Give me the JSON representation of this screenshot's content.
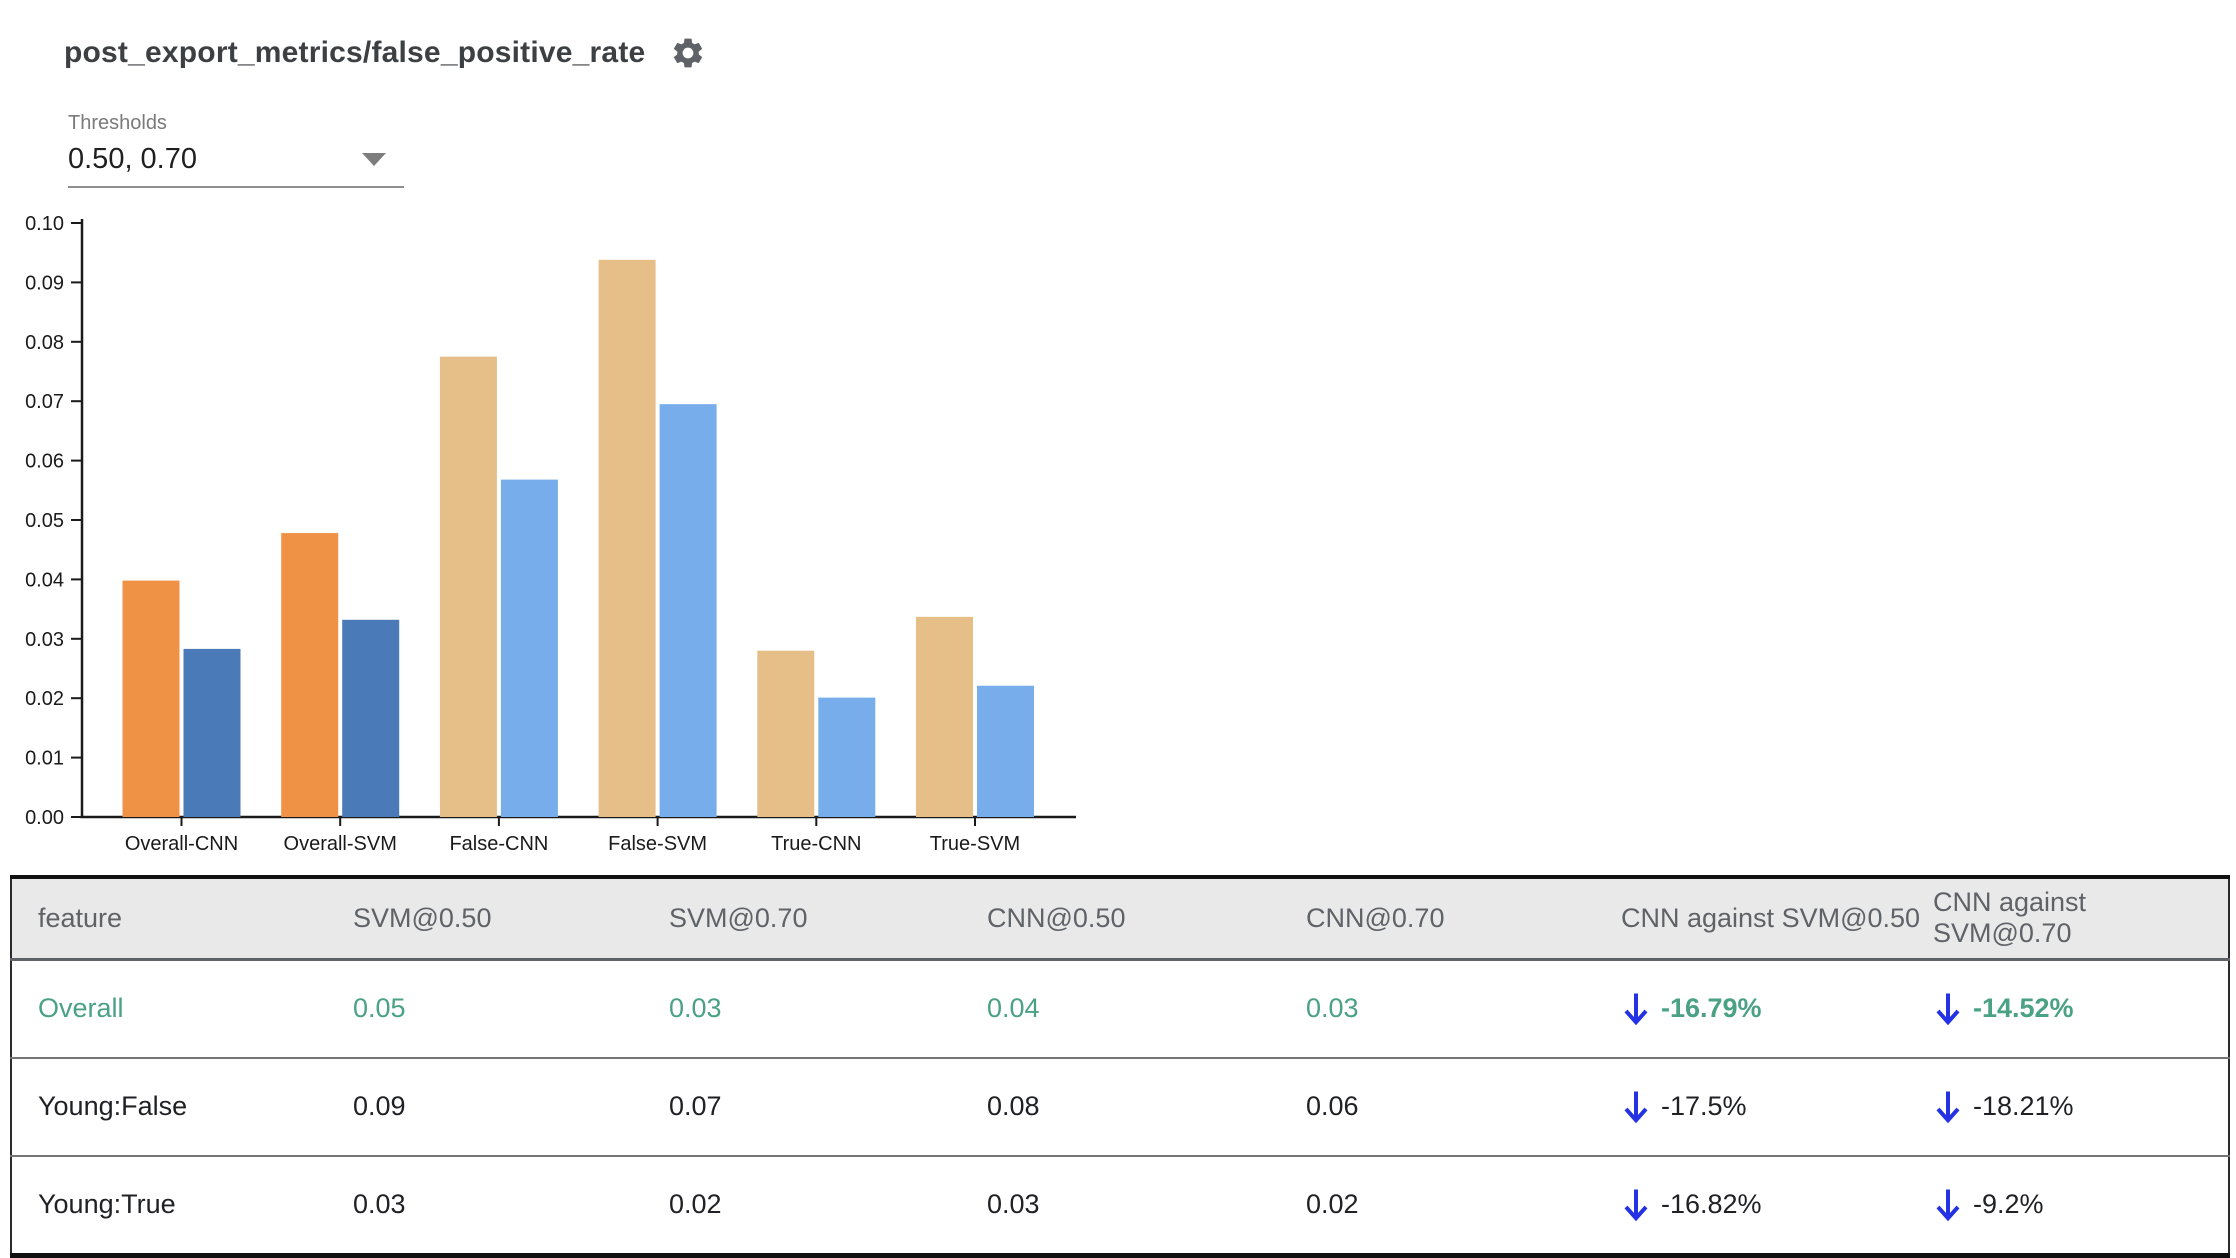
{
  "header": {
    "title": "post_export_metrics/false_positive_rate"
  },
  "thresholds": {
    "label": "Thresholds",
    "value": "0.50, 0.70"
  },
  "chart_data": {
    "type": "bar",
    "title": "post_export_metrics/false_positive_rate",
    "xlabel": "",
    "ylabel": "",
    "ylim": [
      0,
      0.1
    ],
    "ytick_step": 0.01,
    "grid": false,
    "legend": "none",
    "bar_order": [
      "@0.50",
      "@0.70"
    ],
    "groups": [
      {
        "label": "Overall-CNN",
        "bars": [
          {
            "name": "CNN@0.50",
            "value": 0.0398,
            "color": "#ef9245"
          },
          {
            "name": "CNN@0.70",
            "value": 0.0283,
            "color": "#4b7ab8"
          }
        ]
      },
      {
        "label": "Overall-SVM",
        "bars": [
          {
            "name": "SVM@0.50",
            "value": 0.0478,
            "color": "#ef9245"
          },
          {
            "name": "SVM@0.70",
            "value": 0.0332,
            "color": "#4b7ab8"
          }
        ]
      },
      {
        "label": "False-CNN",
        "bars": [
          {
            "name": "CNN@0.50",
            "value": 0.0775,
            "color": "#e6be88"
          },
          {
            "name": "CNN@0.70",
            "value": 0.0568,
            "color": "#77adeb"
          }
        ]
      },
      {
        "label": "False-SVM",
        "bars": [
          {
            "name": "SVM@0.50",
            "value": 0.0938,
            "color": "#e6be88"
          },
          {
            "name": "SVM@0.70",
            "value": 0.0695,
            "color": "#77adeb"
          }
        ]
      },
      {
        "label": "True-CNN",
        "bars": [
          {
            "name": "CNN@0.50",
            "value": 0.028,
            "color": "#e6be88"
          },
          {
            "name": "CNN@0.70",
            "value": 0.0201,
            "color": "#77adeb"
          }
        ]
      },
      {
        "label": "True-SVM",
        "bars": [
          {
            "name": "SVM@0.50",
            "value": 0.0337,
            "color": "#e6be88"
          },
          {
            "name": "SVM@0.70",
            "value": 0.0221,
            "color": "#77adeb"
          }
        ]
      }
    ]
  },
  "table": {
    "columns": [
      "feature",
      "SVM@0.50",
      "SVM@0.70",
      "CNN@0.50",
      "CNN@0.70",
      "CNN against SVM@0.50",
      "CNN against SVM@0.70"
    ],
    "rows": [
      {
        "feature": "Overall",
        "values": [
          "0.05",
          "0.03",
          "0.04",
          "0.03"
        ],
        "comparisons": [
          "-16.79%",
          "-14.52%"
        ],
        "highlighted": true
      },
      {
        "feature": "Young:False",
        "values": [
          "0.09",
          "0.07",
          "0.08",
          "0.06"
        ],
        "comparisons": [
          "-17.5%",
          "-18.21%"
        ],
        "highlighted": false
      },
      {
        "feature": "Young:True",
        "values": [
          "0.03",
          "0.02",
          "0.03",
          "0.02"
        ],
        "comparisons": [
          "-16.82%",
          "-9.2%"
        ],
        "highlighted": false
      }
    ]
  },
  "colors": {
    "bar_orange": "#ef9245",
    "bar_dark_blue": "#4b7ab8",
    "bar_tan": "#e6be88",
    "bar_light_blue": "#77adeb",
    "highlight_green": "#4aa183",
    "arrow_blue": "#2432e4",
    "header_bg": "#e9e9e9",
    "header_text": "#5f6368",
    "axis": "#1a1a1a"
  }
}
